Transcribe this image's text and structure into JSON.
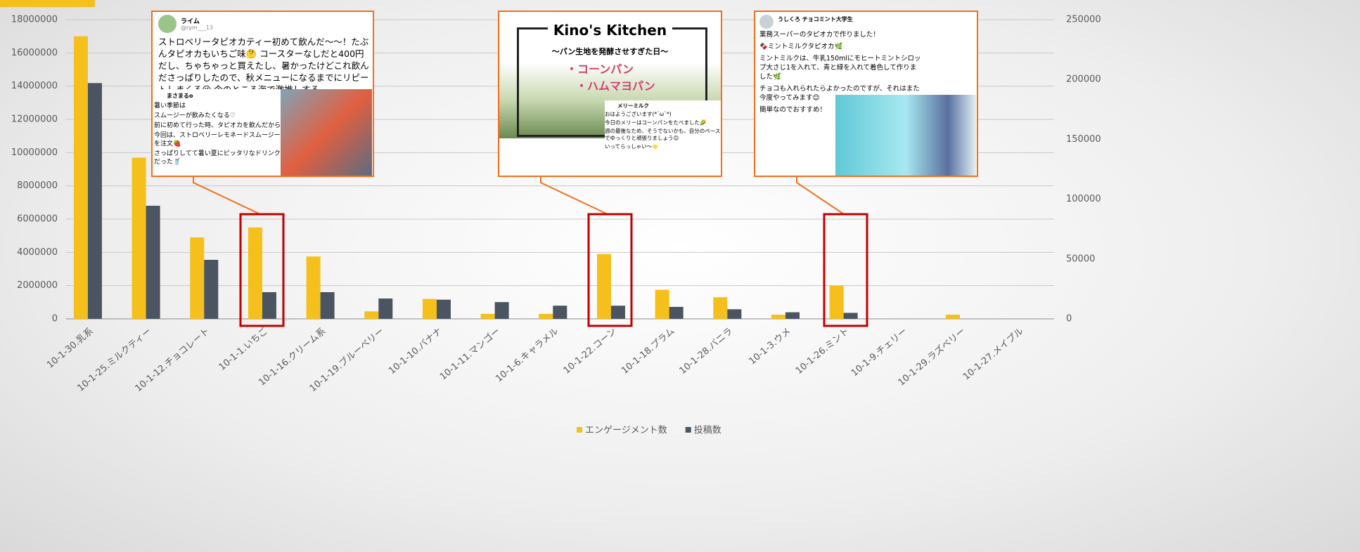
{
  "chart_data": {
    "type": "bar",
    "categories": [
      "10-1-30.乳系",
      "10-1-25.ミルクティー",
      "10-1-12.チョコレート",
      "10-1-1.いちご",
      "10-1-16.クリーム系",
      "10-1-19.ブルーベリー",
      "10-1-10.バナナ",
      "10-1-11.マンゴー",
      "10-1-6.キャラメル",
      "10-1-22.コーン",
      "10-1-18.プラム",
      "10-1-28.バニラ",
      "10-1-3.ウメ",
      "10-1-26.ミント",
      "10-1-9.チェリー",
      "10-1-29.ラズベリー",
      "10-1-27.メイプル"
    ],
    "series": [
      {
        "name": "エンゲージメント数",
        "color": "#f5c01c",
        "values": [
          17000000,
          9700000,
          4900000,
          5500000,
          3750000,
          450000,
          1200000,
          300000,
          300000,
          3900000,
          1750000,
          1300000,
          250000,
          2000000,
          0,
          250000,
          0
        ]
      },
      {
        "name": "投稿数",
        "color": "#4a5561",
        "axis": "y2",
        "values": [
          197000,
          94500,
          49300,
          22300,
          22300,
          17000,
          16000,
          14000,
          11000,
          11000,
          10000,
          8000,
          5500,
          5000,
          0,
          0,
          0
        ]
      }
    ],
    "ylim": [
      0,
      18000000
    ],
    "yticks": [
      0,
      2000000,
      4000000,
      6000000,
      8000000,
      10000000,
      12000000,
      14000000,
      16000000,
      18000000
    ],
    "y2lim": [
      0,
      250000
    ],
    "y2ticks": [
      0,
      50000,
      100000,
      150000,
      200000,
      250000
    ],
    "grid": true,
    "legend": "bottom"
  },
  "tweets": [
    {
      "name": "ライム",
      "handle": "@rym___13",
      "text": "ストロベリータピオカティー初めて飲んだ〜〜！たぶんタピオカもいちご味🤔 コースターなしだと400円だし、ちゃちゃっと買えたし、暑かったけどこれ飲んださっぱりしたので、秋メニューになるまでにリピートしまくる😘 今のところ海で激推しする",
      "inner_name": "まさまるo",
      "inner_lines": [
        "暑い季節は",
        "スムージーが飲みたくなる♡",
        "前に初めて行った時、タピオカを飲んだから",
        "今回は、ストロベリーレモネードスムージーを注文🍓",
        "さっぱりしてて暑い夏にピッタリなドリンクだった🥤"
      ]
    },
    {
      "title": "Kino's Kitchen",
      "subtitle": "～パン生地を発酵させすぎた日～",
      "items": [
        "・コーンパン",
        "・ハムマヨパン"
      ],
      "inner_name": "メリーミルク",
      "inner_lines": [
        "おはようございます(*´ω`*)",
        "今日のメリーはコーンパンをたべました🌽",
        "週の最後なため、そうでないかも、自分のペースでゆっくりと頑張りましょう😊",
        "いってらっしゃい〜🌟"
      ]
    },
    {
      "name": "うしくろ チョコミント大学生",
      "lines": [
        "業務スーパーのタピオカで作りました！",
        "🍫ミントミルクタピオカ🌿",
        "ミントミルクは、牛乳150mlにモヒートミントシロップ大さじ1を入れて、青と緑を入れて着色して作りました🌿",
        "チョコも入れられたらよかったのですが、それはまた今度やってみます😊",
        "簡単なのでおすすめ！"
      ]
    }
  ]
}
